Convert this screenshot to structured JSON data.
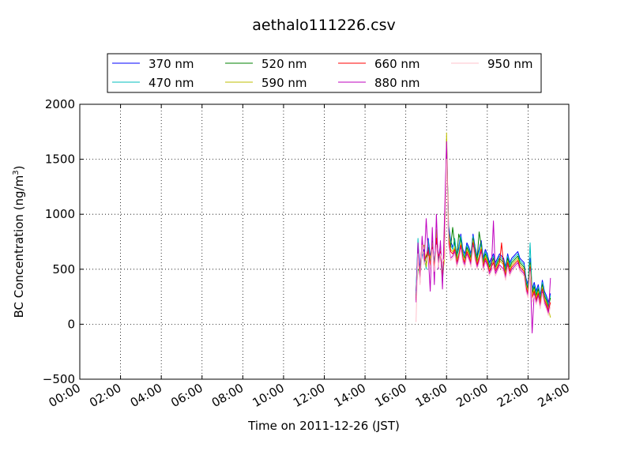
{
  "chart_data": {
    "type": "line",
    "title": "aethalo111226.csv",
    "xlabel": "Time on 2011-12-26 (JST)",
    "ylabel": "BC Concentration (ng/m",
    "ylabel_superscript": "3",
    "ylabel_suffix": ")",
    "x_unit": "hour",
    "xlim": [
      0,
      24
    ],
    "ylim": [
      -500,
      2000
    ],
    "xticks": [
      0,
      2,
      4,
      6,
      8,
      10,
      12,
      14,
      16,
      18,
      20,
      22,
      24
    ],
    "xtick_labels": [
      "00:00",
      "02:00",
      "04:00",
      "06:00",
      "08:00",
      "10:00",
      "12:00",
      "14:00",
      "16:00",
      "18:00",
      "20:00",
      "22:00",
      "24:00"
    ],
    "yticks": [
      -500,
      0,
      500,
      1000,
      1500,
      2000
    ],
    "ytick_labels": [
      "−500",
      "0",
      "500",
      "1000",
      "1500",
      "2000"
    ],
    "grid": true,
    "legend_position": "top",
    "x": [
      16.5,
      16.6,
      16.7,
      16.8,
      16.9,
      17.0,
      17.1,
      17.2,
      17.3,
      17.4,
      17.5,
      17.6,
      17.7,
      17.8,
      17.9,
      18.0,
      18.1,
      18.2,
      18.3,
      18.4,
      18.5,
      18.6,
      18.7,
      18.8,
      18.9,
      19.0,
      19.1,
      19.2,
      19.3,
      19.4,
      19.5,
      19.6,
      19.7,
      19.8,
      19.9,
      20.0,
      20.1,
      20.2,
      20.3,
      20.4,
      20.5,
      20.6,
      20.7,
      20.8,
      20.9,
      21.0,
      21.1,
      21.2,
      21.3,
      21.4,
      21.5,
      21.6,
      21.7,
      21.8,
      21.9,
      22.0,
      22.1,
      22.2,
      22.3,
      22.4,
      22.5,
      22.6,
      22.7,
      22.8,
      22.9,
      23.0,
      23.1
    ],
    "series": [
      {
        "name": "370 nm",
        "color": "#0000ff",
        "values": [
          300,
          720,
          520,
          620,
          680,
          540,
          780,
          620,
          700,
          560,
          800,
          580,
          720,
          420,
          640,
          1620,
          900,
          760,
          700,
          760,
          640,
          700,
          820,
          680,
          640,
          740,
          700,
          640,
          820,
          700,
          620,
          680,
          760,
          600,
          680,
          640,
          560,
          600,
          640,
          560,
          600,
          640,
          620,
          600,
          520,
          640,
          560,
          600,
          620,
          640,
          660,
          600,
          580,
          560,
          420,
          360,
          600,
          320,
          380,
          300,
          360,
          260,
          400,
          300,
          260,
          200,
          280
        ]
      },
      {
        "name": "470 nm",
        "color": "#00bfbf",
        "values": [
          280,
          780,
          400,
          660,
          640,
          500,
          760,
          560,
          720,
          540,
          820,
          560,
          680,
          380,
          660,
          1600,
          860,
          720,
          680,
          780,
          620,
          680,
          800,
          660,
          620,
          720,
          680,
          620,
          800,
          680,
          600,
          660,
          740,
          580,
          660,
          620,
          540,
          580,
          620,
          540,
          580,
          620,
          600,
          580,
          500,
          620,
          540,
          580,
          600,
          620,
          640,
          580,
          560,
          540,
          400,
          340,
          740,
          300,
          360,
          280,
          340,
          240,
          380,
          280,
          240,
          180,
          260
        ]
      },
      {
        "name": "520 nm",
        "color": "#008000",
        "values": [
          260,
          500,
          480,
          740,
          600,
          560,
          700,
          520,
          760,
          500,
          840,
          600,
          640,
          460,
          620,
          1680,
          820,
          700,
          880,
          720,
          600,
          820,
          760,
          640,
          600,
          700,
          660,
          600,
          780,
          660,
          580,
          840,
          720,
          560,
          640,
          600,
          520,
          560,
          600,
          520,
          560,
          600,
          580,
          560,
          480,
          600,
          520,
          560,
          580,
          600,
          620,
          560,
          540,
          520,
          380,
          320,
          560,
          280,
          340,
          260,
          320,
          220,
          360,
          260,
          220,
          160,
          240
        ]
      },
      {
        "name": "590 nm",
        "color": "#bfbf00",
        "values": [
          240,
          660,
          440,
          700,
          720,
          520,
          660,
          600,
          740,
          480,
          860,
          540,
          700,
          440,
          600,
          1740,
          840,
          680,
          660,
          700,
          580,
          640,
          740,
          620,
          580,
          680,
          640,
          580,
          760,
          640,
          560,
          620,
          700,
          540,
          620,
          580,
          500,
          540,
          580,
          500,
          540,
          580,
          560,
          540,
          460,
          580,
          500,
          540,
          560,
          580,
          600,
          540,
          520,
          500,
          360,
          300,
          540,
          260,
          320,
          240,
          300,
          200,
          340,
          240,
          200,
          140,
          60
        ]
      },
      {
        "name": "660 nm",
        "color": "#ff0000",
        "values": [
          220,
          600,
          460,
          760,
          580,
          620,
          680,
          540,
          700,
          520,
          780,
          620,
          660,
          400,
          720,
          1560,
          780,
          660,
          640,
          680,
          560,
          620,
          720,
          600,
          560,
          660,
          620,
          560,
          740,
          620,
          540,
          600,
          680,
          520,
          600,
          560,
          480,
          520,
          560,
          480,
          520,
          560,
          740,
          520,
          440,
          560,
          480,
          520,
          540,
          560,
          580,
          520,
          500,
          480,
          340,
          280,
          520,
          240,
          300,
          220,
          280,
          180,
          320,
          220,
          180,
          120,
          200
        ]
      },
      {
        "name": "880 nm",
        "color": "#bf00bf",
        "values": [
          200,
          740,
          380,
          800,
          560,
          960,
          640,
          300,
          880,
          360,
          1000,
          500,
          760,
          320,
          980,
          1660,
          740,
          600,
          620,
          660,
          540,
          600,
          700,
          580,
          540,
          640,
          600,
          540,
          720,
          600,
          520,
          580,
          660,
          500,
          580,
          540,
          460,
          500,
          940,
          460,
          500,
          540,
          520,
          500,
          420,
          540,
          460,
          500,
          520,
          540,
          560,
          500,
          480,
          460,
          320,
          260,
          500,
          -80,
          280,
          200,
          260,
          160,
          300,
          200,
          160,
          100,
          420
        ]
      },
      {
        "name": "950 nm",
        "color": "#ffc0cb",
        "values": [
          20,
          640,
          360,
          720,
          540,
          580,
          620,
          500,
          680,
          480,
          720,
          520,
          640,
          560,
          600,
          1500,
          720,
          580,
          600,
          640,
          520,
          580,
          680,
          560,
          520,
          620,
          580,
          520,
          700,
          580,
          500,
          560,
          640,
          480,
          560,
          520,
          440,
          480,
          520,
          440,
          480,
          520,
          500,
          480,
          400,
          520,
          440,
          480,
          500,
          520,
          540,
          480,
          460,
          440,
          300,
          240,
          480,
          200,
          260,
          180,
          240,
          140,
          280,
          180,
          140,
          80,
          160
        ]
      }
    ]
  }
}
